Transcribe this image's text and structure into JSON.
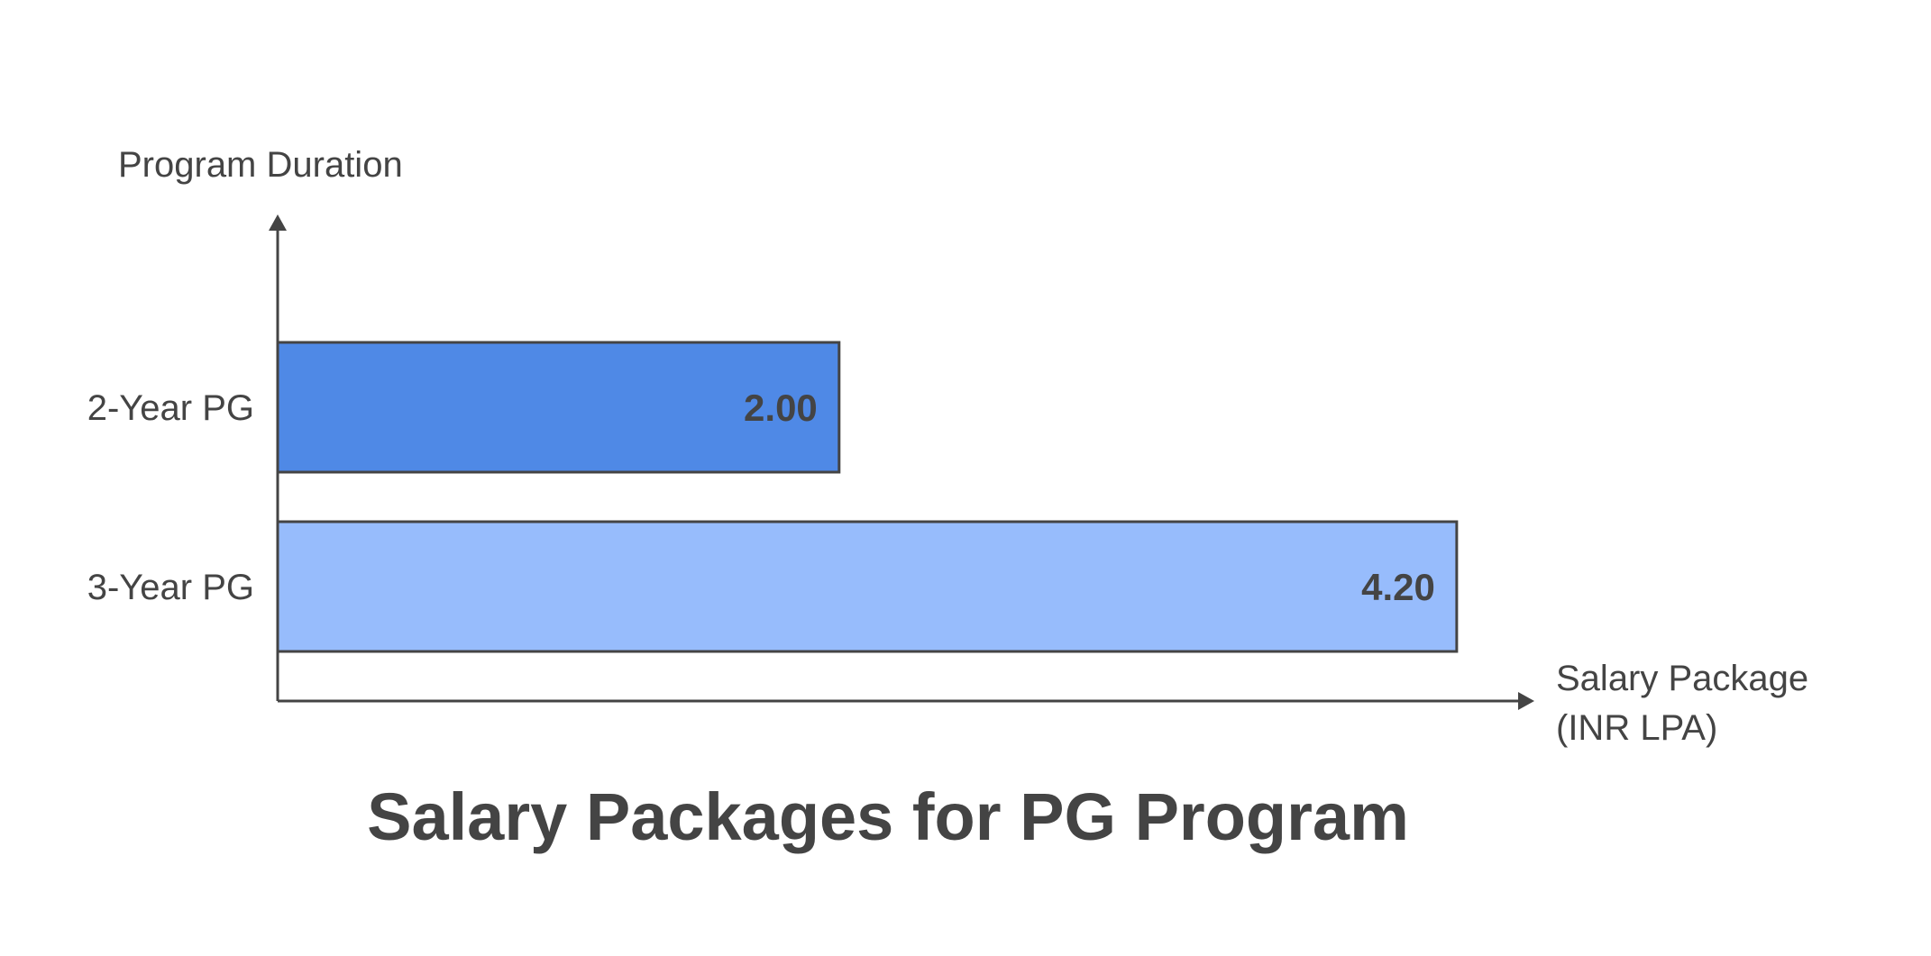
{
  "chart_data": {
    "type": "bar",
    "orientation": "horizontal",
    "title": "Salary Packages for PG Program",
    "ylabel": "Program Duration",
    "xlabel_lines": [
      "Salary Package",
      "(INR LPA)"
    ],
    "categories": [
      "2-Year PG",
      "3-Year PG"
    ],
    "values": [
      2.0,
      4.2
    ],
    "value_labels": [
      "2.00",
      "4.20"
    ],
    "colors": [
      "#4f89e6",
      "#97bcfc"
    ],
    "grid": false,
    "legend": "none"
  }
}
